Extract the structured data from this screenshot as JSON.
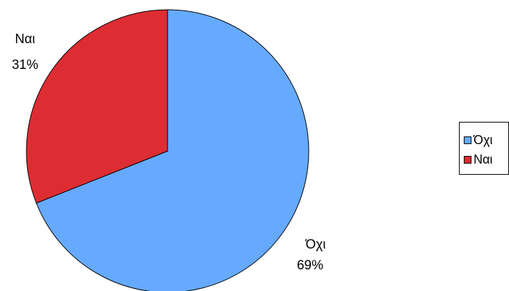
{
  "chart_data": {
    "type": "pie",
    "title": "",
    "slices": [
      {
        "label": "Όχι",
        "value": 69,
        "value_label": "69%",
        "color": "#66aaff"
      },
      {
        "label": "Ναι",
        "value": 31,
        "value_label": "31%",
        "color": "#dd2d33"
      }
    ],
    "start_angle_deg": 0,
    "direction": "clockwise",
    "legend": {
      "position": "right",
      "entries": [
        "Όχι",
        "Ναι"
      ]
    }
  }
}
